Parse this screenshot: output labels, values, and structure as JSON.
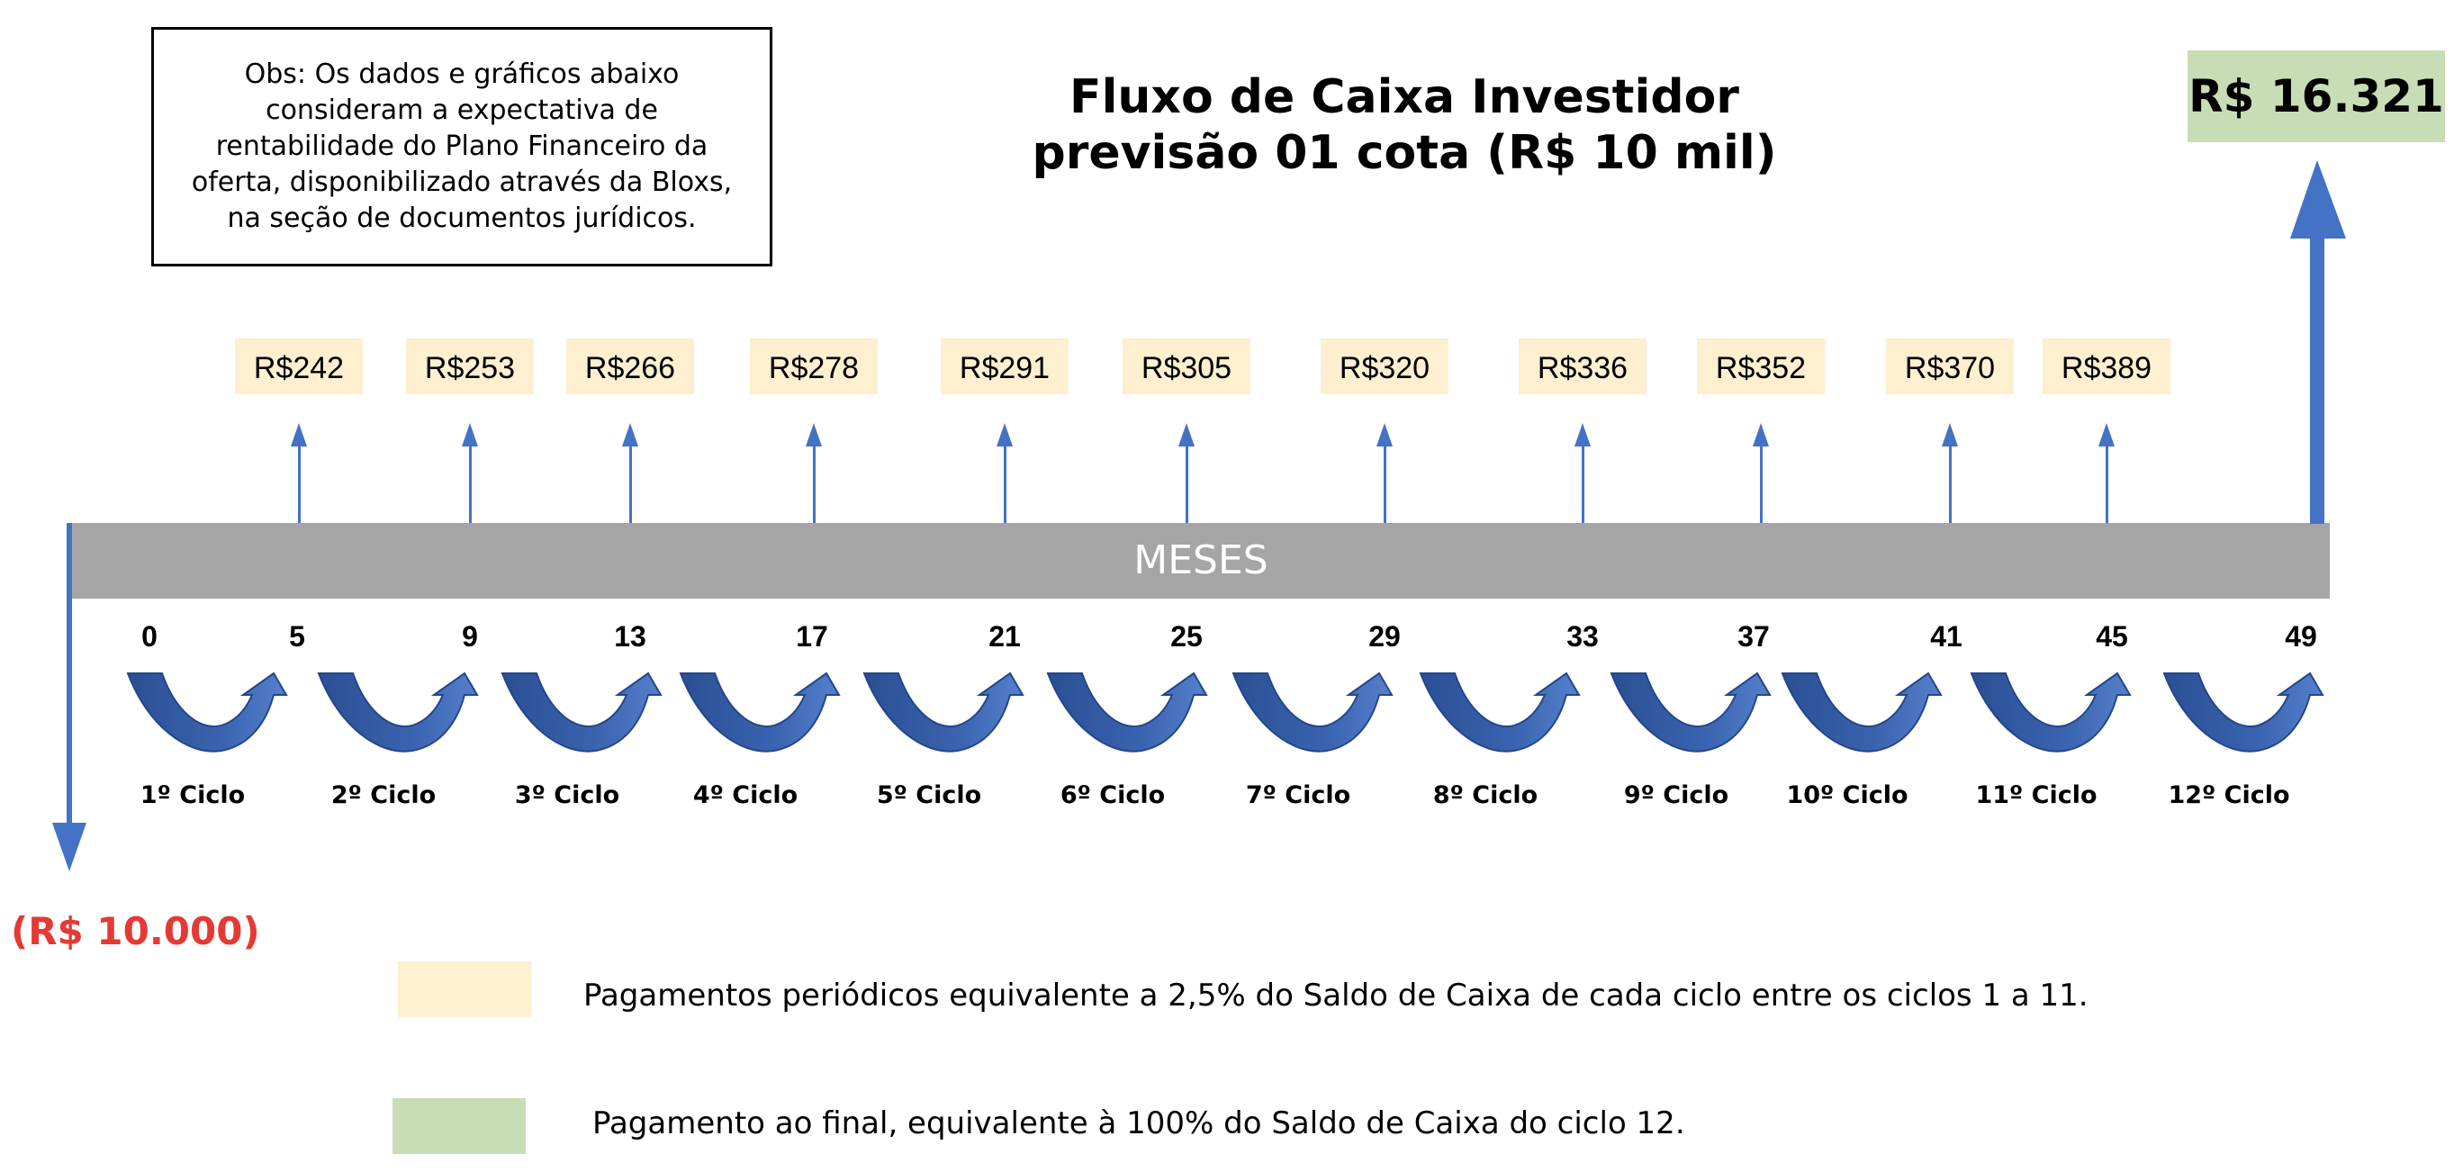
{
  "note": "Obs: Os dados e gráficos abaixo consideram a expectativa de rentabilidade do Plano Financeiro da oferta, disponibilizado através da Bloxs, na seção de documentos jurídicos.",
  "title_line1": "Fluxo de Caixa Investidor",
  "title_line2": "previsão 01 cota (R$ 10 mil)",
  "axis_label": "MESES",
  "final_payment": "R$ 16.321",
  "initial_investment": "(R$ 10.000)",
  "payments": [
    "R$242",
    "R$253",
    "R$266",
    "R$278",
    "R$291",
    "R$305",
    "R$320",
    "R$336",
    "R$352",
    "R$370",
    "R$389"
  ],
  "months": [
    "0",
    "5",
    "9",
    "13",
    "17",
    "21",
    "25",
    "29",
    "33",
    "37",
    "41",
    "45",
    "49"
  ],
  "cycles": [
    "1º Ciclo",
    "2º Ciclo",
    "3º Ciclo",
    "4º Ciclo",
    "5º Ciclo",
    "6º Ciclo",
    "7º Ciclo",
    "8º Ciclo",
    "9º Ciclo",
    "10º Ciclo",
    "11º Ciclo",
    "12º Ciclo"
  ],
  "legend": {
    "periodic": "Pagamentos periódicos equivalente a 2,5% do Saldo de Caixa de cada ciclo entre os ciclos 1 a 11.",
    "final": "Pagamento ao final, equivalente à 100% do Saldo de Caixa do ciclo 12."
  },
  "colors": {
    "axis_bar": "#a5a5a5",
    "arrow_blue": "#4472c4",
    "curve_blue": "#2f5597",
    "payment_fill": "#fdefcf",
    "final_fill": "#c8ddb5",
    "negative": "#e53935"
  }
}
